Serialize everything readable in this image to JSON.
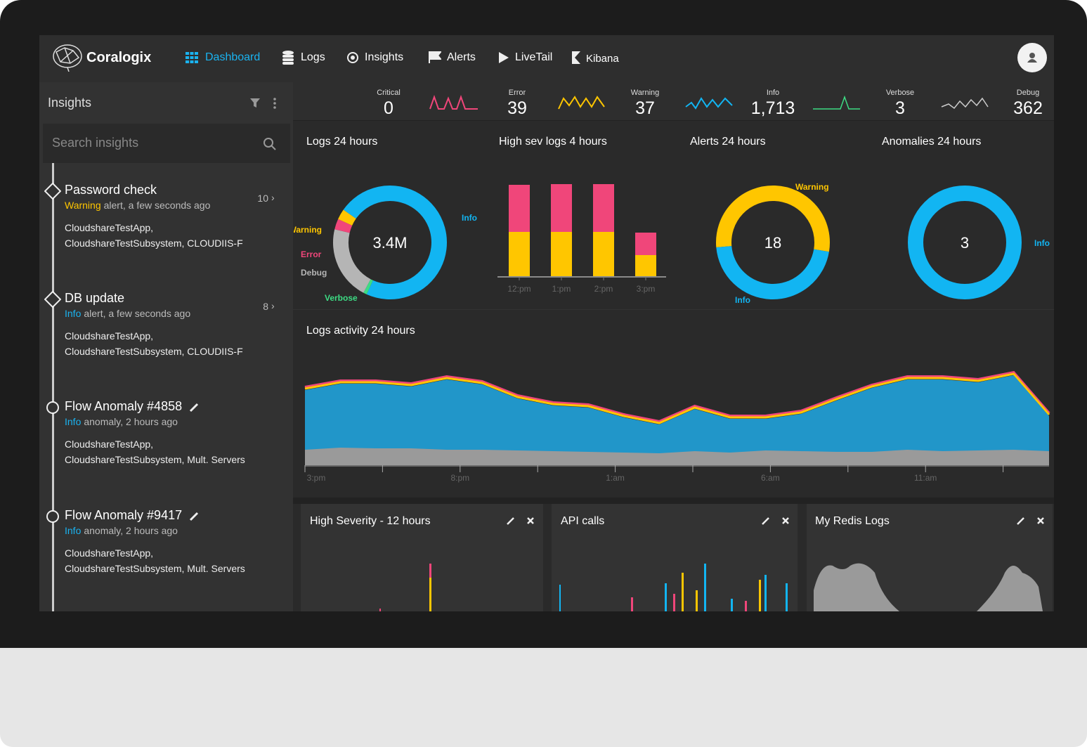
{
  "nav": {
    "brand": "Coralogix",
    "items": [
      "Dashboard",
      "Logs",
      "Insights",
      "Alerts",
      "LiveTail",
      "Kibana"
    ]
  },
  "sidebar": {
    "title": "Insights",
    "search_placeholder": "Search insights",
    "items": [
      {
        "title": "Password check",
        "level": "Warning",
        "level_color": "#ffc600",
        "text": "alert, a few seconds ago",
        "count": 10,
        "details": [
          "CloudshareTestApp,",
          "CloudshareTestSubsystem, CLOUDIIS-F"
        ]
      },
      {
        "title": "DB update",
        "level": "Info",
        "level_color": "#1ab3f0",
        "text": "alert, a few seconds ago",
        "count": 8,
        "details": [
          "CloudshareTestApp,",
          "CloudshareTestSubsystem, CLOUDIIS-F"
        ]
      },
      {
        "title": "Flow Anomaly #4858",
        "level": "Info",
        "level_color": "#1ab3f0",
        "text": "anomaly, 2 hours ago",
        "details": [
          "CloudshareTestApp,",
          "CloudshareTestSubsystem, Mult. Servers"
        ]
      },
      {
        "title": "Flow Anomaly #9417",
        "level": "Info",
        "level_color": "#1ab3f0",
        "text": "anomaly, 2 hours ago",
        "details": [
          "CloudshareTestApp,",
          "CloudshareTestSubsystem, Mult. Servers"
        ]
      }
    ]
  },
  "stats": [
    {
      "label": "Critical",
      "value": 0
    },
    {
      "label": "Error",
      "value": 39
    },
    {
      "label": "Warning",
      "value": 37
    },
    {
      "label": "Info",
      "value": 1713,
      "value_label": "1,713"
    },
    {
      "label": "Verbose",
      "value": 3
    },
    {
      "label": "Debug",
      "value": 362
    }
  ],
  "widgets": [
    {
      "type": "donut",
      "title": "Logs 24 hours",
      "center": "3.4M",
      "series": [
        {
          "name": "Info",
          "color": "#12b5f2",
          "value": 72
        },
        {
          "name": "Verbose",
          "color": "#3ddc84",
          "value": 1
        },
        {
          "name": "Debug",
          "color": "#b5b5b5",
          "value": 21
        },
        {
          "name": "Error",
          "color": "#f0467a",
          "value": 3
        },
        {
          "name": "Warning",
          "color": "#ffc600",
          "value": 3
        }
      ]
    },
    {
      "type": "bar",
      "title": "High sev logs 4 hours",
      "categories": [
        "12:pm",
        "1:pm",
        "2:pm",
        "3:pm"
      ],
      "ylim": [
        0,
        140
      ],
      "series": [
        {
          "color": "#ffc600",
          "values": [
            63,
            63,
            63,
            30
          ]
        },
        {
          "color": "#f0467a",
          "values": [
            67,
            68,
            68,
            32
          ]
        }
      ]
    },
    {
      "type": "donut",
      "title": "Alerts 24 hours",
      "center": "18",
      "series": [
        {
          "name": "Warning",
          "color": "#ffc600",
          "value": 54
        },
        {
          "name": "Info",
          "color": "#12b5f2",
          "value": 46
        }
      ]
    },
    {
      "type": "donut",
      "title": "Anomalies 24 hours",
      "center": "3",
      "series": [
        {
          "name": "Info",
          "color": "#12b5f2",
          "value": 100
        }
      ]
    }
  ],
  "activity": {
    "type": "area",
    "title": "Logs activity 24 hours",
    "x_labels": [
      "3:pm",
      "8:pm",
      "1:am",
      "6:am",
      "11:am"
    ],
    "ylim": [
      0,
      140
    ],
    "series": [
      {
        "color": "#2196c9",
        "values": [
          107,
          116,
          116,
          112,
          122,
          115,
          95,
          85,
          82,
          68,
          58,
          80,
          66,
          66,
          73,
          92,
          110,
          122,
          122,
          118,
          128,
          70
        ]
      },
      {
        "color": "#9a9a9a",
        "values": [
          22,
          25,
          24,
          24,
          22,
          22,
          21,
          20,
          19,
          18,
          17,
          20,
          18,
          21,
          20,
          19,
          19,
          22,
          20,
          21,
          22,
          20
        ]
      }
    ]
  },
  "panels": [
    "High Severity - 12 hours",
    "API calls",
    "My Redis Logs"
  ]
}
